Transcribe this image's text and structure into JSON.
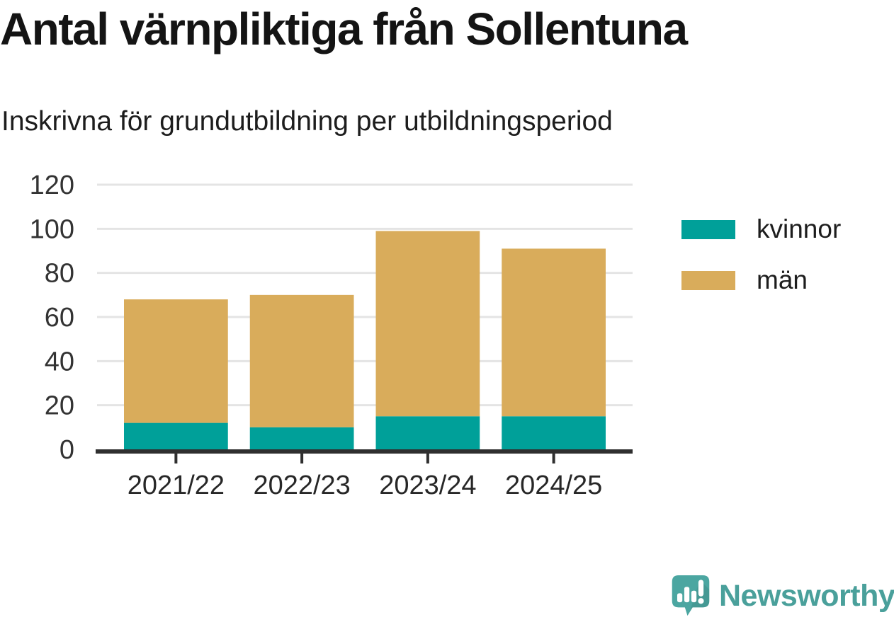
{
  "page": {
    "title": "Antal värnpliktiga från Sollentuna",
    "subtitle": "Inskrivna för grundutbildning per utbildningsperiod"
  },
  "chart_data": {
    "type": "bar",
    "stacked": true,
    "title": "Antal värnpliktiga från Sollentuna",
    "subtitle": "Inskrivna för grundutbildning per utbildningsperiod",
    "categories": [
      "2021/22",
      "2022/23",
      "2023/24",
      "2024/25"
    ],
    "series": [
      {
        "name": "kvinnor",
        "color": "#00a099",
        "values": [
          12,
          10,
          15,
          15
        ]
      },
      {
        "name": "män",
        "color": "#d9ac5b",
        "values": [
          56,
          60,
          84,
          76
        ]
      }
    ],
    "totals": [
      68,
      70,
      99,
      91
    ],
    "xlabel": "",
    "ylabel": "",
    "ylim": [
      0,
      120
    ],
    "yticks": [
      0,
      20,
      40,
      60,
      80,
      100,
      120
    ],
    "grid": "horizontal",
    "legend_position": "right"
  },
  "branding": {
    "wordmark": "Newsworthy",
    "color": "#4aa09b",
    "icon": "newsworthy-speech-bubble-bar-chart-icon"
  },
  "colors": {
    "kvinnor": "#00a099",
    "man": "#d9ac5b",
    "axis": "#2f2f2f",
    "gridline": "#e4e4e4",
    "y_tick_label": "#333333",
    "x_tick_label": "#272727",
    "title_text": "#141414"
  }
}
